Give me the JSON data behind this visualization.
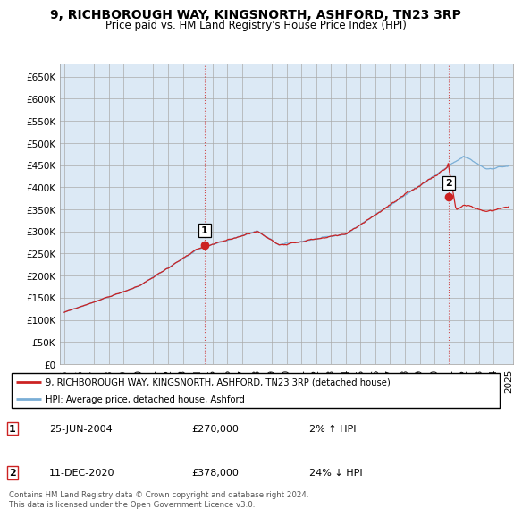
{
  "title": "9, RICHBOROUGH WAY, KINGSNORTH, ASHFORD, TN23 3RP",
  "subtitle": "Price paid vs. HM Land Registry's House Price Index (HPI)",
  "ylabel_ticks": [
    "£0",
    "£50K",
    "£100K",
    "£150K",
    "£200K",
    "£250K",
    "£300K",
    "£350K",
    "£400K",
    "£450K",
    "£500K",
    "£550K",
    "£600K",
    "£650K"
  ],
  "ytick_values": [
    0,
    50000,
    100000,
    150000,
    200000,
    250000,
    300000,
    350000,
    400000,
    450000,
    500000,
    550000,
    600000,
    650000
  ],
  "ylim": [
    0,
    680000
  ],
  "xlim_start": 1994.7,
  "xlim_end": 2025.3,
  "xticks": [
    1995,
    1996,
    1997,
    1998,
    1999,
    2000,
    2001,
    2002,
    2003,
    2004,
    2005,
    2006,
    2007,
    2008,
    2009,
    2010,
    2011,
    2012,
    2013,
    2014,
    2015,
    2016,
    2017,
    2018,
    2019,
    2020,
    2021,
    2022,
    2023,
    2024,
    2025
  ],
  "hpi_color": "#7aaed6",
  "price_color": "#cc2222",
  "sale1_x": 2004.48,
  "sale1_y": 270000,
  "sale2_x": 2020.95,
  "sale2_y": 378000,
  "legend_line1": "9, RICHBOROUGH WAY, KINGSNORTH, ASHFORD, TN23 3RP (detached house)",
  "legend_line2": "HPI: Average price, detached house, Ashford",
  "note1_label": "1",
  "note1_date": "25-JUN-2004",
  "note1_price": "£270,000",
  "note1_hpi": "2% ↑ HPI",
  "note2_label": "2",
  "note2_date": "11-DEC-2020",
  "note2_price": "£378,000",
  "note2_hpi": "24% ↓ HPI",
  "footnote": "Contains HM Land Registry data © Crown copyright and database right 2024.\nThis data is licensed under the Open Government Licence v3.0.",
  "bg_color": "#dce9f5",
  "plot_bg": "#dce9f5",
  "grid_color": "#aaaaaa",
  "title_fontsize": 10,
  "subtitle_fontsize": 8.5,
  "tick_fontsize": 7.5
}
